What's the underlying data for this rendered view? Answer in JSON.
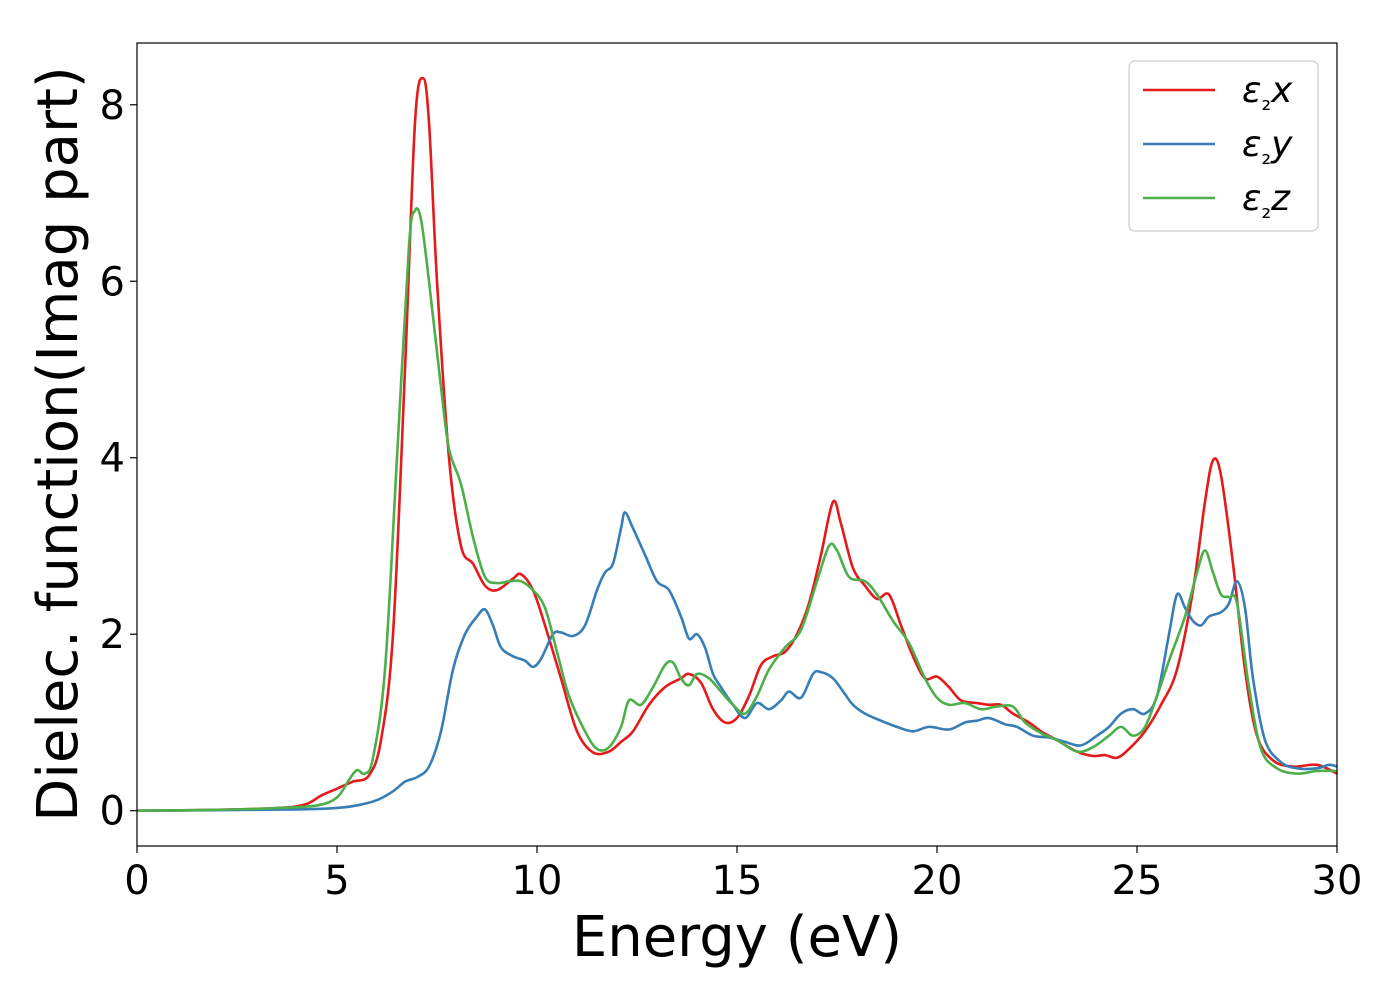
{
  "chart_data": {
    "type": "line",
    "title": "",
    "xlabel": "Energy (eV)",
    "ylabel": "Dielec. function(Imag part)",
    "xlim": [
      0,
      30
    ],
    "ylim": [
      -0.4,
      8.7
    ],
    "xticks": [
      "0",
      "5",
      "10",
      "15",
      "20",
      "25",
      "30"
    ],
    "yticks": [
      "0",
      "2",
      "4",
      "6",
      "8"
    ],
    "grid": false,
    "legend_position": "top-right",
    "series": [
      {
        "name": "ε₂x",
        "color": "#e41a1c",
        "points": [
          [
            0,
            0
          ],
          [
            2,
            0.01
          ],
          [
            3.5,
            0.03
          ],
          [
            4.2,
            0.07
          ],
          [
            4.6,
            0.17
          ],
          [
            5,
            0.25
          ],
          [
            5.4,
            0.33
          ],
          [
            5.8,
            0.4
          ],
          [
            6.1,
            0.8
          ],
          [
            6.4,
            2
          ],
          [
            6.7,
            5
          ],
          [
            6.95,
            7.8
          ],
          [
            7.15,
            8.3
          ],
          [
            7.3,
            7.8
          ],
          [
            7.5,
            6
          ],
          [
            7.8,
            4
          ],
          [
            8.1,
            3
          ],
          [
            8.4,
            2.8
          ],
          [
            8.7,
            2.55
          ],
          [
            9,
            2.5
          ],
          [
            9.4,
            2.63
          ],
          [
            9.6,
            2.68
          ],
          [
            9.9,
            2.5
          ],
          [
            10.2,
            2.1
          ],
          [
            10.6,
            1.5
          ],
          [
            11,
            0.9
          ],
          [
            11.4,
            0.66
          ],
          [
            11.8,
            0.67
          ],
          [
            12.1,
            0.78
          ],
          [
            12.4,
            0.9
          ],
          [
            12.8,
            1.2
          ],
          [
            13.2,
            1.4
          ],
          [
            13.6,
            1.5
          ],
          [
            13.8,
            1.55
          ],
          [
            14.1,
            1.45
          ],
          [
            14.4,
            1.15
          ],
          [
            14.7,
            1
          ],
          [
            15,
            1.05
          ],
          [
            15.3,
            1.3
          ],
          [
            15.6,
            1.65
          ],
          [
            15.9,
            1.75
          ],
          [
            16.2,
            1.8
          ],
          [
            16.5,
            2
          ],
          [
            16.8,
            2.35
          ],
          [
            17.1,
            2.9
          ],
          [
            17.4,
            3.5
          ],
          [
            17.6,
            3.25
          ],
          [
            17.9,
            2.75
          ],
          [
            18.2,
            2.55
          ],
          [
            18.5,
            2.4
          ],
          [
            18.8,
            2.45
          ],
          [
            19.1,
            2.1
          ],
          [
            19.4,
            1.75
          ],
          [
            19.7,
            1.5
          ],
          [
            20,
            1.52
          ],
          [
            20.3,
            1.4
          ],
          [
            20.6,
            1.25
          ],
          [
            21,
            1.22
          ],
          [
            21.3,
            1.2
          ],
          [
            21.6,
            1.2
          ],
          [
            21.9,
            1.1
          ],
          [
            22.3,
            1
          ],
          [
            22.6,
            0.9
          ],
          [
            23,
            0.8
          ],
          [
            23.5,
            0.67
          ],
          [
            23.9,
            0.62
          ],
          [
            24.2,
            0.63
          ],
          [
            24.5,
            0.6
          ],
          [
            24.8,
            0.7
          ],
          [
            25.2,
            0.9
          ],
          [
            25.6,
            1.2
          ],
          [
            26,
            1.6
          ],
          [
            26.4,
            2.5
          ],
          [
            26.7,
            3.5
          ],
          [
            26.9,
            3.97
          ],
          [
            27.1,
            3.8
          ],
          [
            27.4,
            2.8
          ],
          [
            27.7,
            1.6
          ],
          [
            28,
            0.85
          ],
          [
            28.4,
            0.57
          ],
          [
            28.9,
            0.5
          ],
          [
            29.5,
            0.52
          ],
          [
            30,
            0.42
          ]
        ]
      },
      {
        "name": "ε₂y",
        "color": "#377eb8",
        "points": [
          [
            0,
            0
          ],
          [
            3,
            0.01
          ],
          [
            4.5,
            0.02
          ],
          [
            5.2,
            0.04
          ],
          [
            5.6,
            0.07
          ],
          [
            6,
            0.12
          ],
          [
            6.4,
            0.22
          ],
          [
            6.7,
            0.33
          ],
          [
            7,
            0.38
          ],
          [
            7.3,
            0.5
          ],
          [
            7.6,
            0.9
          ],
          [
            7.9,
            1.6
          ],
          [
            8.2,
            2
          ],
          [
            8.5,
            2.2
          ],
          [
            8.7,
            2.28
          ],
          [
            8.9,
            2.1
          ],
          [
            9.1,
            1.85
          ],
          [
            9.4,
            1.75
          ],
          [
            9.7,
            1.7
          ],
          [
            9.9,
            1.63
          ],
          [
            10.1,
            1.72
          ],
          [
            10.4,
            2
          ],
          [
            10.6,
            2.02
          ],
          [
            10.9,
            1.98
          ],
          [
            11.2,
            2.1
          ],
          [
            11.5,
            2.5
          ],
          [
            11.7,
            2.7
          ],
          [
            11.9,
            2.8
          ],
          [
            12.1,
            3.2
          ],
          [
            12.2,
            3.38
          ],
          [
            12.4,
            3.2
          ],
          [
            12.7,
            2.9
          ],
          [
            13,
            2.6
          ],
          [
            13.3,
            2.5
          ],
          [
            13.6,
            2.2
          ],
          [
            13.8,
            1.95
          ],
          [
            14,
            2
          ],
          [
            14.2,
            1.85
          ],
          [
            14.4,
            1.55
          ],
          [
            14.6,
            1.4
          ],
          [
            14.9,
            1.2
          ],
          [
            15.2,
            1.05
          ],
          [
            15.5,
            1.22
          ],
          [
            15.8,
            1.15
          ],
          [
            16.1,
            1.25
          ],
          [
            16.3,
            1.35
          ],
          [
            16.6,
            1.28
          ],
          [
            16.9,
            1.55
          ],
          [
            17.1,
            1.57
          ],
          [
            17.4,
            1.5
          ],
          [
            17.7,
            1.32
          ],
          [
            17.9,
            1.2
          ],
          [
            18.2,
            1.1
          ],
          [
            18.6,
            1.02
          ],
          [
            19,
            0.95
          ],
          [
            19.4,
            0.9
          ],
          [
            19.8,
            0.95
          ],
          [
            20.3,
            0.92
          ],
          [
            20.7,
            1
          ],
          [
            21,
            1.02
          ],
          [
            21.3,
            1.05
          ],
          [
            21.7,
            0.98
          ],
          [
            22,
            0.95
          ],
          [
            22.4,
            0.85
          ],
          [
            22.8,
            0.83
          ],
          [
            23.2,
            0.78
          ],
          [
            23.6,
            0.74
          ],
          [
            24,
            0.85
          ],
          [
            24.3,
            0.95
          ],
          [
            24.6,
            1.1
          ],
          [
            24.9,
            1.15
          ],
          [
            25.2,
            1.1
          ],
          [
            25.5,
            1.3
          ],
          [
            25.8,
            2
          ],
          [
            26,
            2.45
          ],
          [
            26.2,
            2.3
          ],
          [
            26.4,
            2.15
          ],
          [
            26.6,
            2.1
          ],
          [
            26.8,
            2.2
          ],
          [
            27.1,
            2.25
          ],
          [
            27.3,
            2.35
          ],
          [
            27.5,
            2.6
          ],
          [
            27.7,
            2.3
          ],
          [
            27.9,
            1.5
          ],
          [
            28.2,
            0.8
          ],
          [
            28.6,
            0.55
          ],
          [
            29,
            0.48
          ],
          [
            29.5,
            0.48
          ],
          [
            29.8,
            0.52
          ],
          [
            30,
            0.5
          ]
        ]
      },
      {
        "name": "ε₂z",
        "color": "#4daf4a",
        "points": [
          [
            0,
            0
          ],
          [
            2,
            0.01
          ],
          [
            3.5,
            0.03
          ],
          [
            4.5,
            0.06
          ],
          [
            5,
            0.15
          ],
          [
            5.3,
            0.35
          ],
          [
            5.5,
            0.46
          ],
          [
            5.7,
            0.42
          ],
          [
            5.9,
            0.6
          ],
          [
            6.2,
            1.6
          ],
          [
            6.5,
            4
          ],
          [
            6.8,
            6.4
          ],
          [
            6.95,
            6.8
          ],
          [
            7.1,
            6.7
          ],
          [
            7.3,
            6
          ],
          [
            7.6,
            4.8
          ],
          [
            7.8,
            4.1
          ],
          [
            8.1,
            3.7
          ],
          [
            8.4,
            3.1
          ],
          [
            8.7,
            2.65
          ],
          [
            9,
            2.58
          ],
          [
            9.3,
            2.6
          ],
          [
            9.6,
            2.6
          ],
          [
            9.9,
            2.5
          ],
          [
            10.2,
            2.3
          ],
          [
            10.5,
            1.8
          ],
          [
            10.8,
            1.3
          ],
          [
            11.2,
            0.9
          ],
          [
            11.5,
            0.7
          ],
          [
            11.8,
            0.72
          ],
          [
            12.1,
            0.95
          ],
          [
            12.3,
            1.25
          ],
          [
            12.6,
            1.2
          ],
          [
            12.9,
            1.4
          ],
          [
            13.2,
            1.65
          ],
          [
            13.4,
            1.68
          ],
          [
            13.6,
            1.5
          ],
          [
            13.8,
            1.42
          ],
          [
            14,
            1.55
          ],
          [
            14.3,
            1.5
          ],
          [
            14.6,
            1.35
          ],
          [
            14.9,
            1.2
          ],
          [
            15.2,
            1.1
          ],
          [
            15.5,
            1.3
          ],
          [
            15.8,
            1.6
          ],
          [
            16.2,
            1.85
          ],
          [
            16.6,
            2.05
          ],
          [
            17,
            2.6
          ],
          [
            17.3,
            3
          ],
          [
            17.5,
            2.95
          ],
          [
            17.8,
            2.65
          ],
          [
            18.2,
            2.6
          ],
          [
            18.5,
            2.45
          ],
          [
            18.9,
            2.15
          ],
          [
            19.3,
            1.9
          ],
          [
            19.7,
            1.5
          ],
          [
            20,
            1.28
          ],
          [
            20.3,
            1.2
          ],
          [
            20.7,
            1.22
          ],
          [
            21.1,
            1.15
          ],
          [
            21.5,
            1.18
          ],
          [
            21.9,
            1.18
          ],
          [
            22.2,
            1
          ],
          [
            22.6,
            0.88
          ],
          [
            23,
            0.8
          ],
          [
            23.5,
            0.67
          ],
          [
            23.9,
            0.72
          ],
          [
            24.3,
            0.85
          ],
          [
            24.6,
            0.95
          ],
          [
            24.9,
            0.85
          ],
          [
            25.2,
            0.95
          ],
          [
            25.5,
            1.3
          ],
          [
            25.8,
            1.7
          ],
          [
            26.2,
            2.2
          ],
          [
            26.5,
            2.7
          ],
          [
            26.7,
            2.95
          ],
          [
            26.9,
            2.7
          ],
          [
            27.1,
            2.45
          ],
          [
            27.3,
            2.42
          ],
          [
            27.5,
            2.35
          ],
          [
            27.8,
            1.4
          ],
          [
            28.1,
            0.7
          ],
          [
            28.5,
            0.48
          ],
          [
            29,
            0.42
          ],
          [
            29.5,
            0.45
          ],
          [
            30,
            0.45
          ]
        ]
      }
    ]
  }
}
